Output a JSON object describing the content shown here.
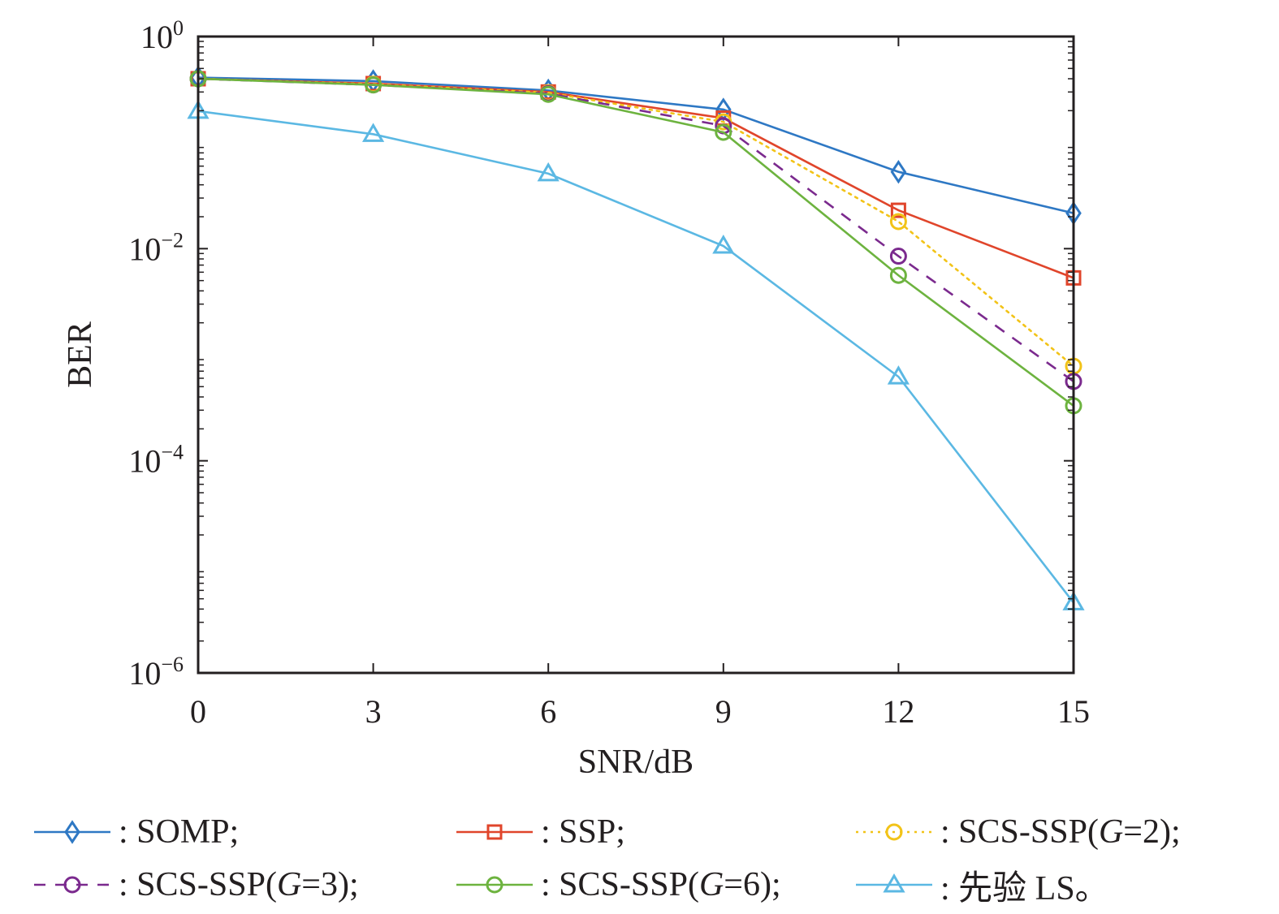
{
  "chart_data": {
    "type": "line",
    "title": "",
    "xlabel": "SNR/dB",
    "ylabel": "BER",
    "xscale": "linear",
    "yscale": "log",
    "xlim": [
      0,
      15
    ],
    "ylim": [
      1e-06,
      1
    ],
    "x": [
      0,
      3,
      6,
      9,
      12,
      15
    ],
    "x_ticks": [
      "0",
      "3",
      "6",
      "9",
      "12",
      "15"
    ],
    "y_ticks": [
      {
        "value": 1,
        "base": "10",
        "exp": "0"
      },
      {
        "value": 0.01,
        "base": "10",
        "exp": "−2"
      },
      {
        "value": 0.0001,
        "base": "10",
        "exp": "−4"
      },
      {
        "value": 1e-06,
        "base": "10",
        "exp": "−6"
      }
    ],
    "grid": false,
    "legend_position": "bottom",
    "series": [
      {
        "name": "SOMP",
        "label_prefix": ": SOMP;",
        "color": "#2e78c4",
        "marker": "diamond",
        "dash": "solid",
        "values": [
          0.41,
          0.38,
          0.31,
          0.205,
          0.053,
          0.0216
        ]
      },
      {
        "name": "SSP",
        "label_prefix": ": SSP;",
        "color": "#e0452b",
        "marker": "square",
        "dash": "solid",
        "values": [
          0.4,
          0.36,
          0.3,
          0.17,
          0.023,
          0.0053
        ]
      },
      {
        "name": "SCS-SSP(G=2)",
        "label_prefix": ": SCS-SSP(",
        "label_g": "G",
        "label_suffix": "=2);",
        "color": "#f2c318",
        "marker": "circle",
        "dash": "dotted",
        "values": [
          0.4,
          0.355,
          0.295,
          0.157,
          0.018,
          0.00078
        ]
      },
      {
        "name": "SCS-SSP(G=3)",
        "label_prefix": ": SCS-SSP(",
        "label_g": "G",
        "label_suffix": "=3);",
        "color": "#7b2a8e",
        "marker": "circle",
        "dash": "dashed",
        "values": [
          0.4,
          0.35,
          0.29,
          0.144,
          0.0085,
          0.00056
        ]
      },
      {
        "name": "SCS-SSP(G=6)",
        "label_prefix": ": SCS-SSP(",
        "label_g": "G",
        "label_suffix": "=6);",
        "color": "#6db33f",
        "marker": "circle",
        "dash": "solid",
        "values": [
          0.4,
          0.35,
          0.285,
          0.125,
          0.0056,
          0.00033
        ]
      },
      {
        "name": "先验 LS",
        "label_prefix": ": 先验 LS。",
        "color": "#5bb8e3",
        "marker": "triangle",
        "dash": "solid",
        "values": [
          0.198,
          0.12,
          0.051,
          0.0106,
          0.00062,
          4.6e-06
        ]
      }
    ]
  }
}
